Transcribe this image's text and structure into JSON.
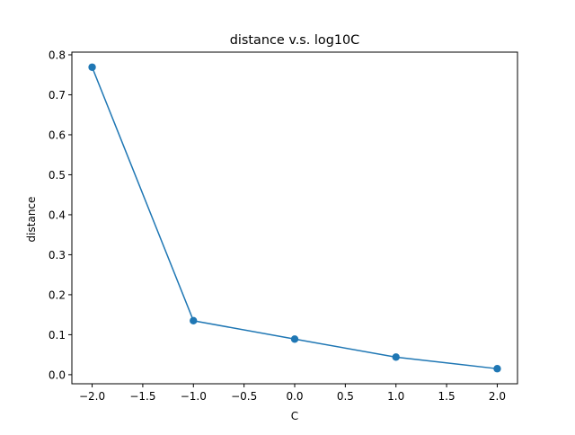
{
  "chart_data": {
    "type": "line",
    "title": "distance v.s. log10C",
    "xlabel": "C",
    "ylabel": "distance",
    "x": [
      -2.0,
      -1.0,
      0.0,
      1.0,
      2.0
    ],
    "series": [
      {
        "values": [
          0.769,
          0.135,
          0.089,
          0.044,
          0.015
        ],
        "color": "#1f77b4",
        "marker": "circle",
        "line": true
      }
    ],
    "xlim": [
      -2.2,
      2.2
    ],
    "ylim": [
      -0.0227,
      0.8067
    ],
    "xticks": [
      -2.0,
      -1.5,
      -1.0,
      -0.5,
      0.0,
      0.5,
      1.0,
      1.5,
      2.0
    ],
    "xtick_labels": [
      "−2.0",
      "−1.5",
      "−1.0",
      "−0.5",
      "0.0",
      "0.5",
      "1.0",
      "1.5",
      "2.0"
    ],
    "yticks": [
      0.0,
      0.1,
      0.2,
      0.3,
      0.4,
      0.5,
      0.6,
      0.7,
      0.8
    ],
    "ytick_labels": [
      "0.0",
      "0.1",
      "0.2",
      "0.3",
      "0.4",
      "0.5",
      "0.6",
      "0.7",
      "0.8"
    ],
    "grid": false,
    "legend": false
  }
}
